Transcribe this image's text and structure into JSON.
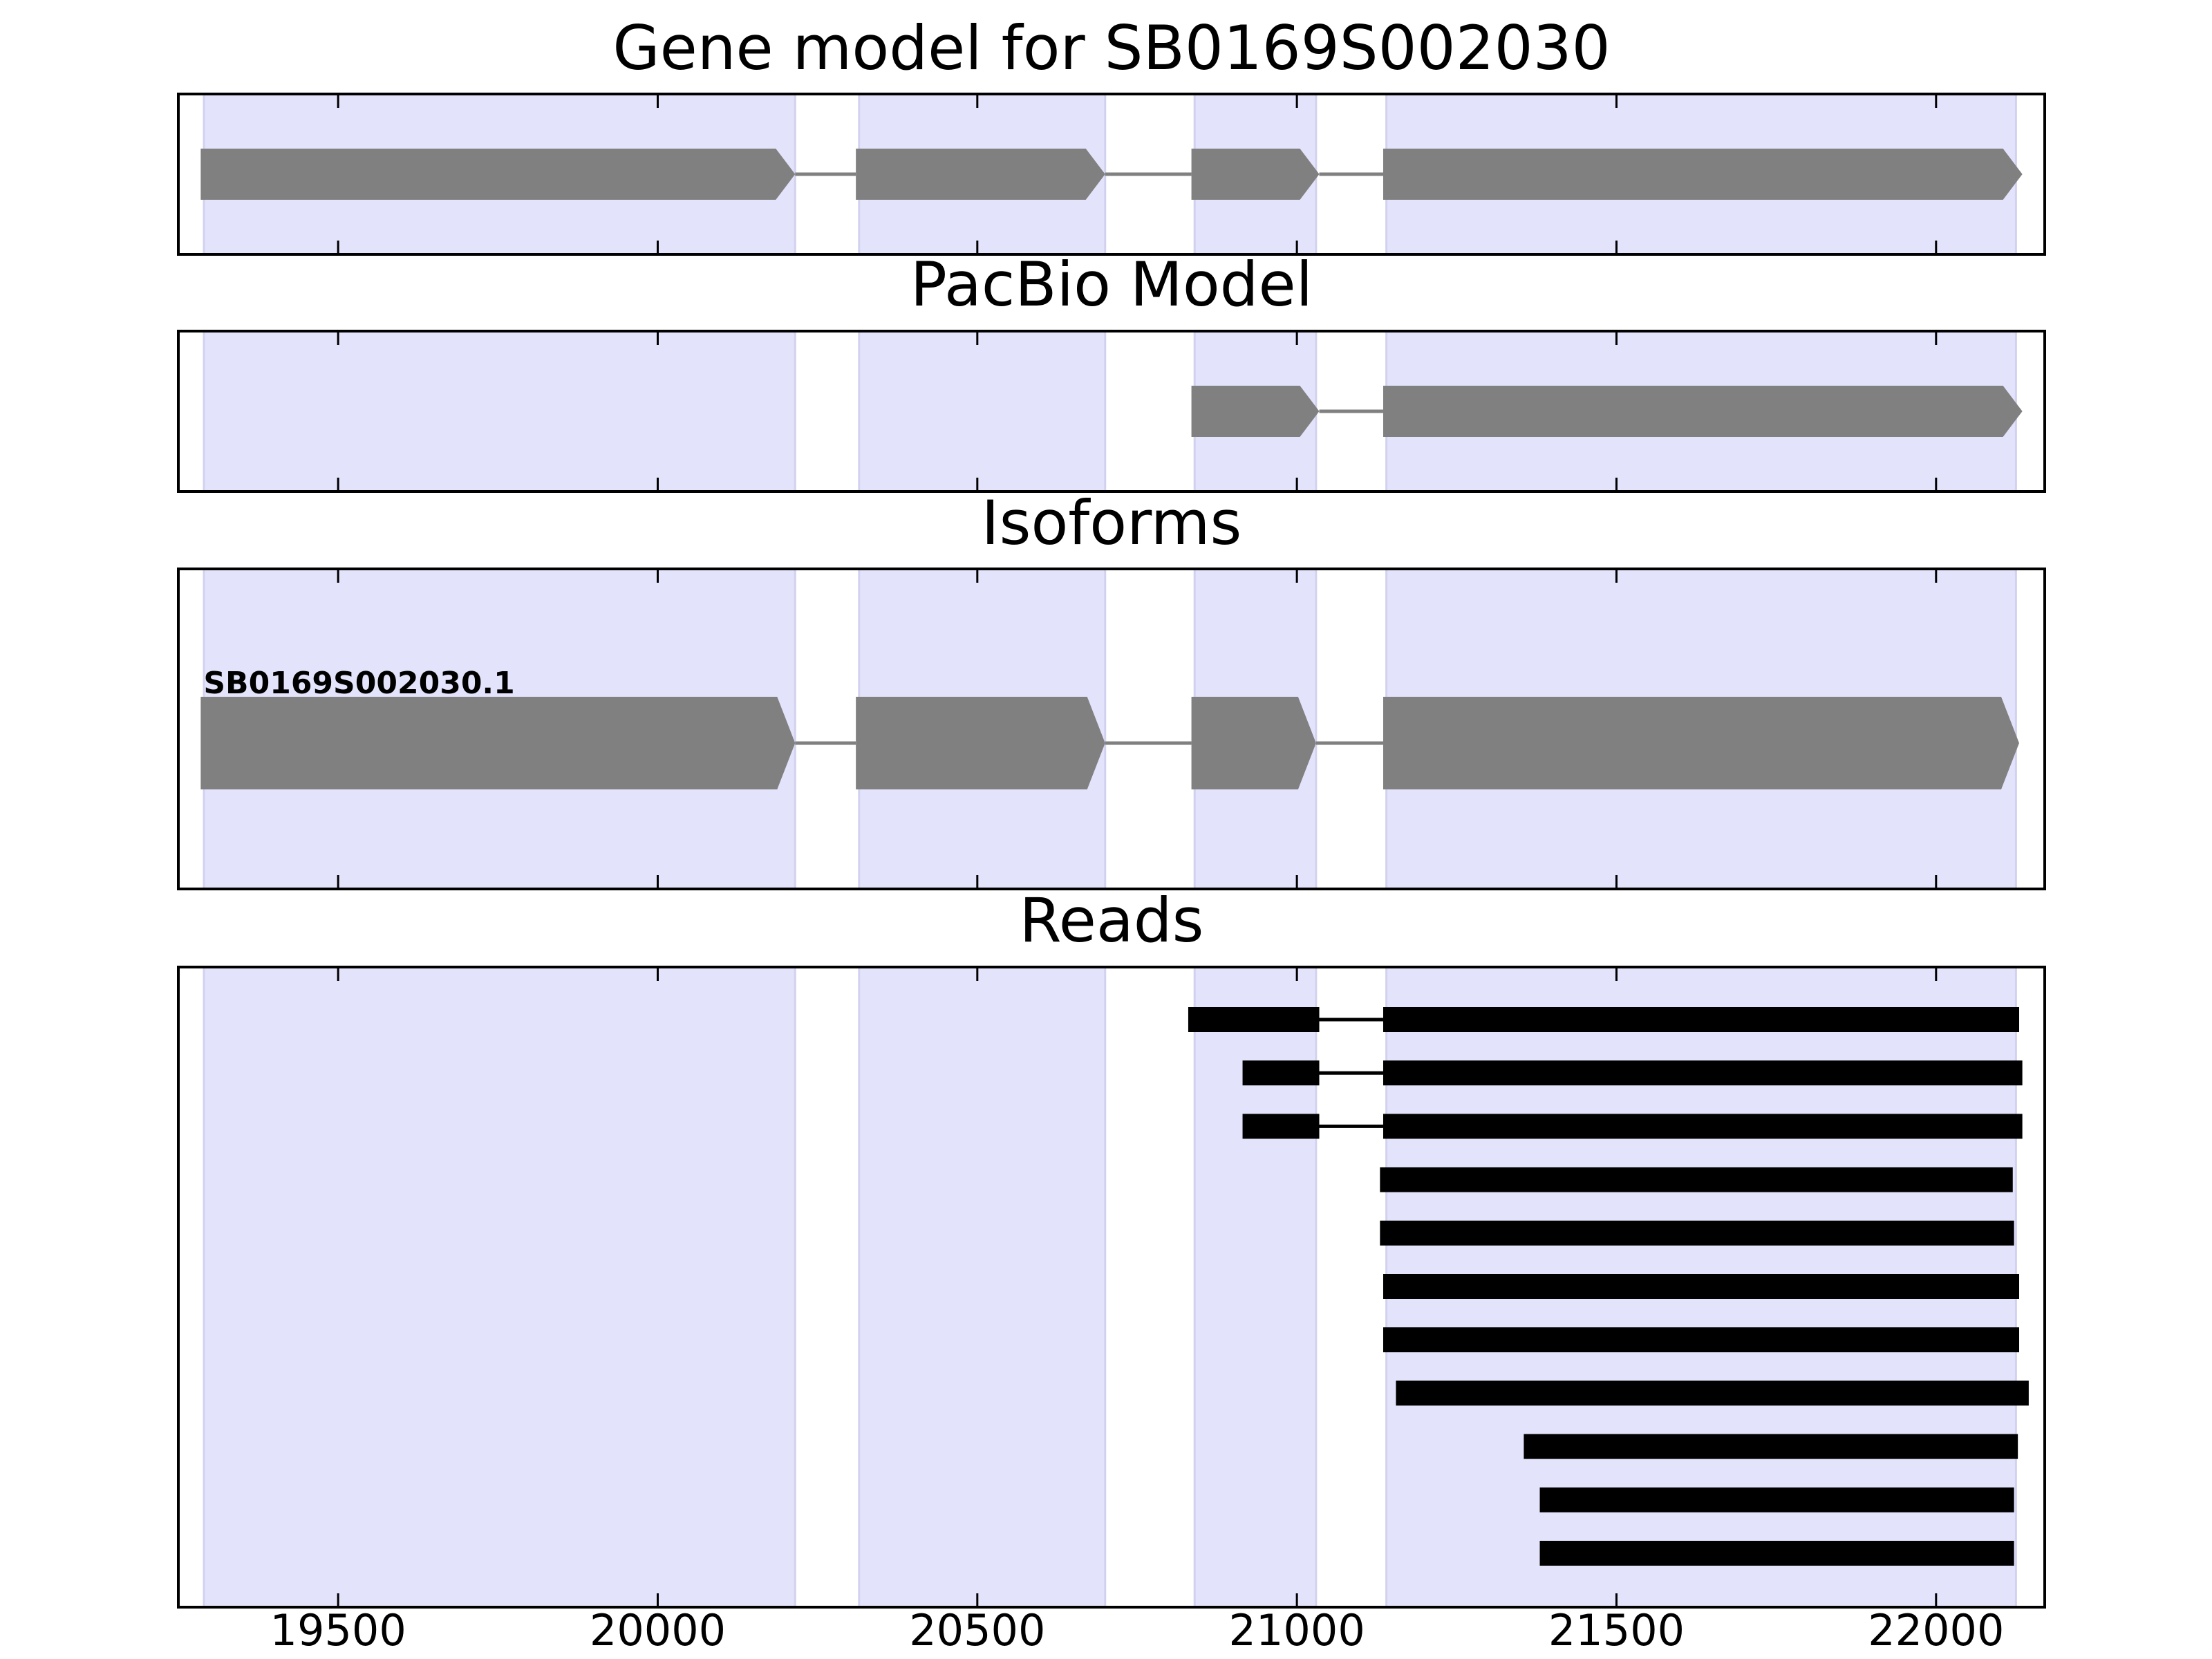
{
  "chart_data": {
    "type": "gene-model-tracks",
    "xlim": [
      19250,
      22170
    ],
    "x_ticks": [
      19500,
      20000,
      20500,
      21000,
      21500,
      22000
    ],
    "x_tick_labels": [
      "19500",
      "20000",
      "20500",
      "21000",
      "21500",
      "22000"
    ],
    "grid": false,
    "shading_color": "#e3e3fb",
    "exon_color": "#808080",
    "read_color": "#000000",
    "shaded_regions": [
      {
        "start": 19290,
        "end": 20215
      },
      {
        "start": 20315,
        "end": 20700
      },
      {
        "start": 20840,
        "end": 21030
      },
      {
        "start": 21140,
        "end": 22125
      }
    ],
    "panels": [
      {
        "key": "gene",
        "title": "Gene model for SB0169S002030",
        "kind": "gene",
        "strand": "+",
        "exons": [
          [
            19285,
            20215
          ],
          [
            20310,
            20700
          ],
          [
            20835,
            21035
          ],
          [
            21135,
            22135
          ]
        ]
      },
      {
        "key": "pacbio",
        "title": "PacBio Model",
        "kind": "gene",
        "strand": "+",
        "exons": [
          [
            20835,
            21035
          ],
          [
            21135,
            22135
          ]
        ]
      },
      {
        "key": "isoforms",
        "title": "Isoforms",
        "kind": "isoforms",
        "isoforms": [
          {
            "name": "SB0169S002030.1",
            "strand": "+",
            "exons": [
              [
                19285,
                20215
              ],
              [
                20310,
                20700
              ],
              [
                20835,
                21030
              ],
              [
                21135,
                22130
              ]
            ]
          }
        ]
      },
      {
        "key": "reads",
        "title": "Reads",
        "kind": "reads",
        "reads": [
          [
            [
              20830,
              21035
            ],
            [
              21135,
              22130
            ]
          ],
          [
            [
              20915,
              21035
            ],
            [
              21135,
              22135
            ]
          ],
          [
            [
              20915,
              21035
            ],
            [
              21135,
              22135
            ]
          ],
          [
            [
              21130,
              22120
            ]
          ],
          [
            [
              21130,
              22122
            ]
          ],
          [
            [
              21135,
              22130
            ]
          ],
          [
            [
              21135,
              22130
            ]
          ],
          [
            [
              21155,
              22145
            ]
          ],
          [
            [
              21355,
              22128
            ]
          ],
          [
            [
              21380,
              22122
            ]
          ],
          [
            [
              21380,
              22122
            ]
          ]
        ]
      }
    ]
  }
}
